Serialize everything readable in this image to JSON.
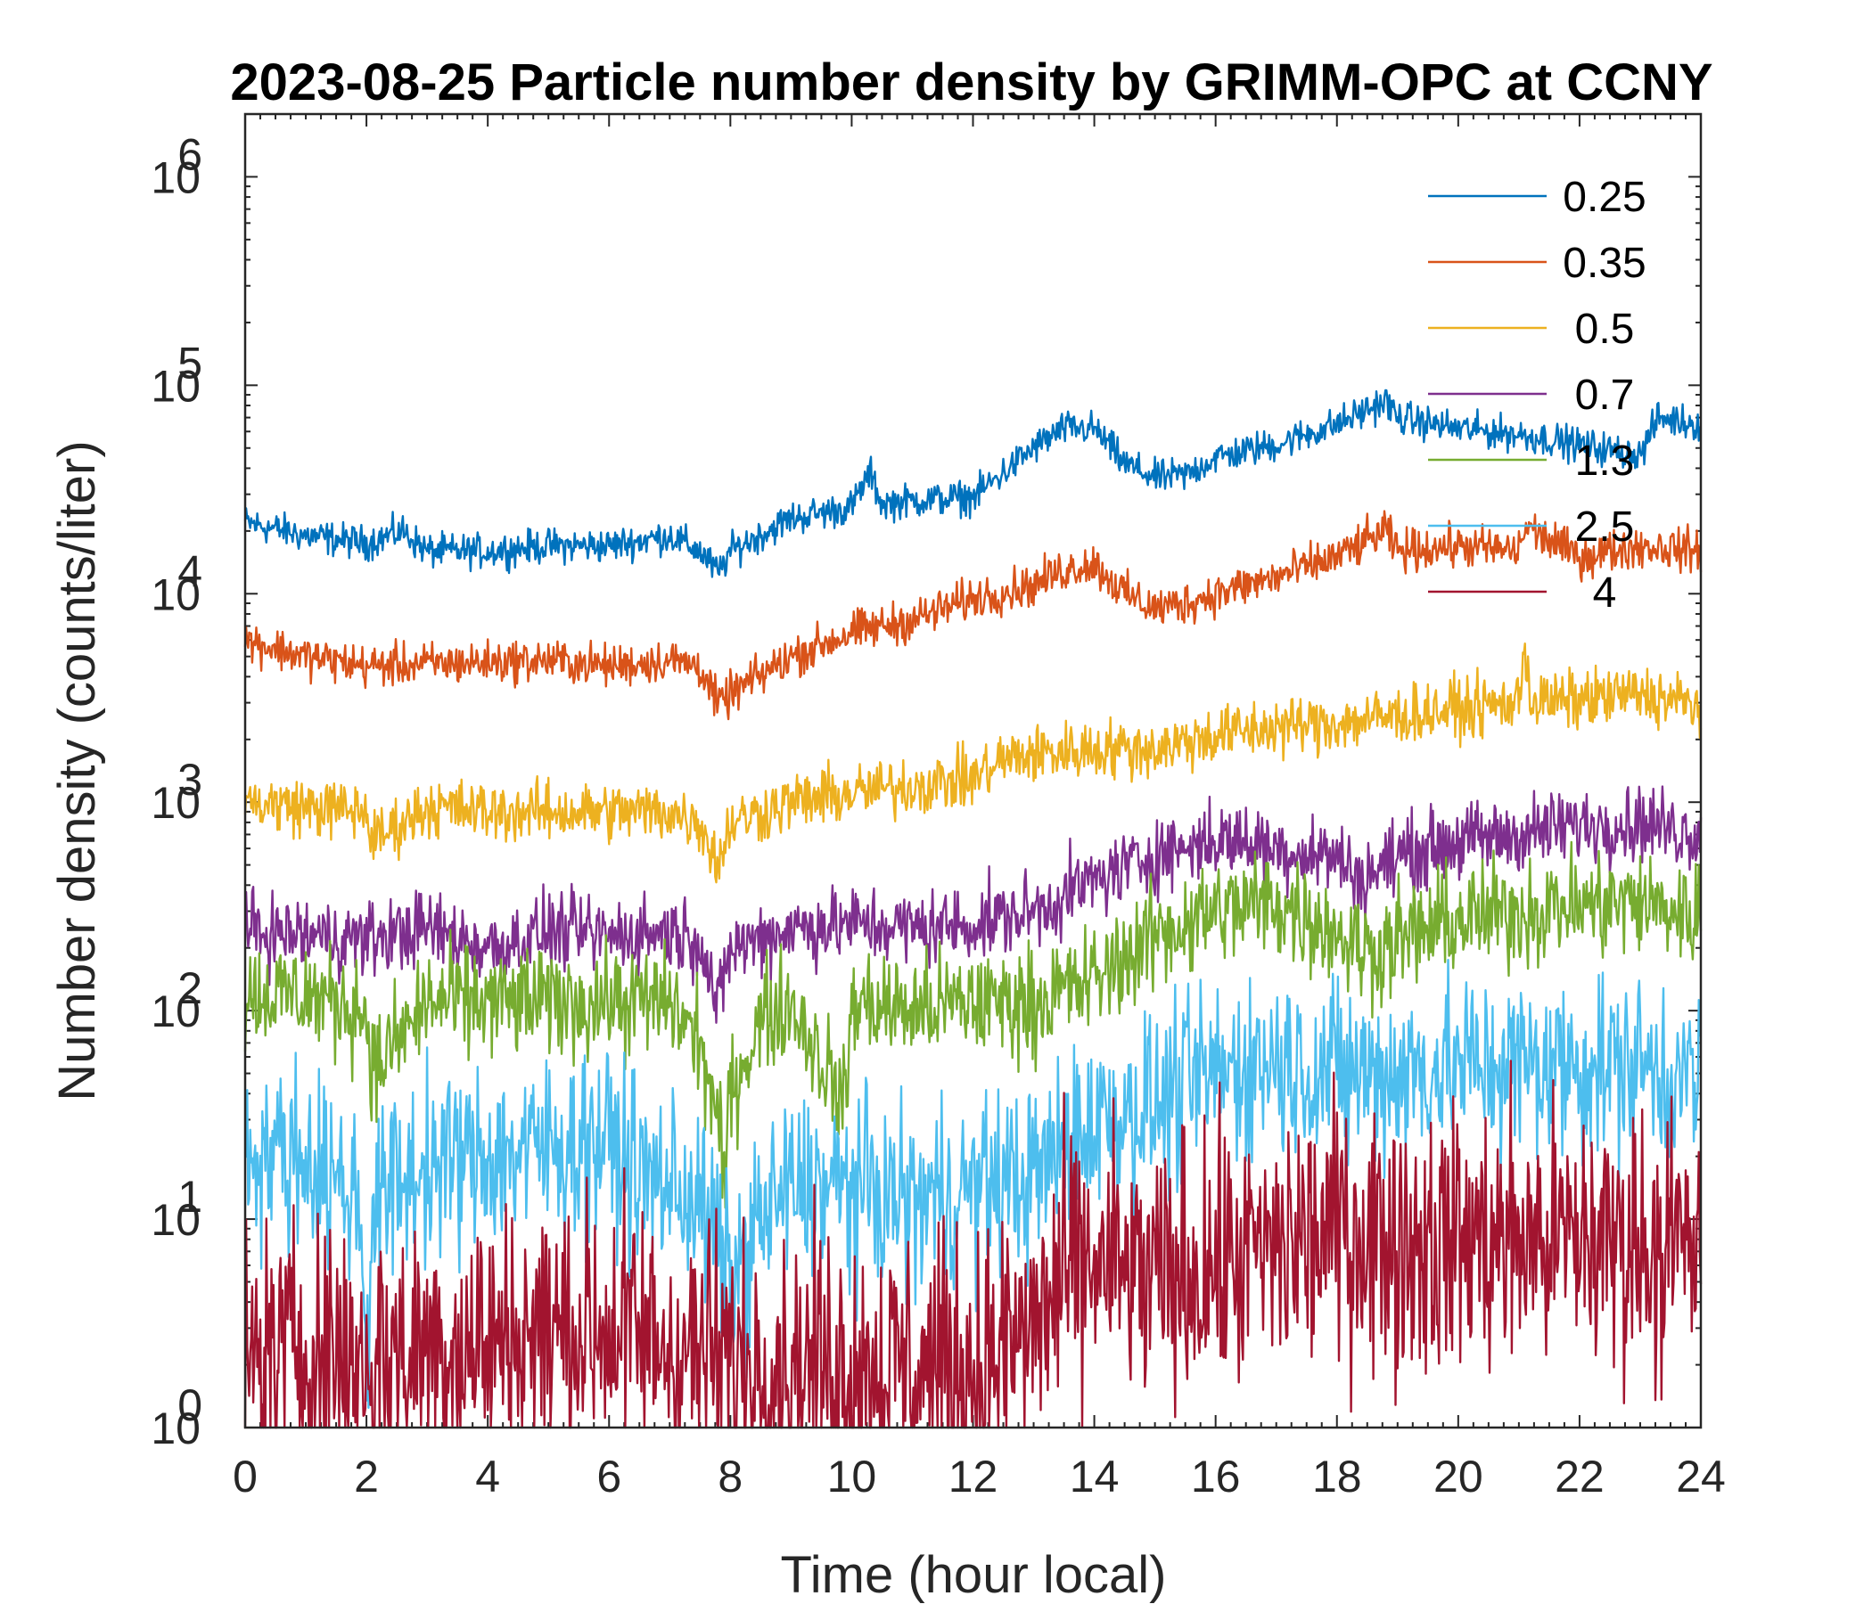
{
  "chart_data": {
    "type": "line",
    "title": "2023-08-25 Particle number density by GRIMM-OPC at CCNY",
    "xlabel": "Time (hour local)",
    "ylabel": "Number density (counts/liter)",
    "xlim": [
      0,
      24
    ],
    "ylim": [
      1,
      2000000
    ],
    "yscale": "log",
    "xticks": [
      0,
      2,
      4,
      6,
      8,
      10,
      12,
      14,
      16,
      18,
      20,
      22,
      24
    ],
    "xtick_labels": [
      "0",
      "2",
      "4",
      "6",
      "8",
      "10",
      "12",
      "14",
      "16",
      "18",
      "20",
      "22",
      "24"
    ],
    "yticks": [
      1,
      10,
      100,
      1000,
      10000,
      100000,
      1000000
    ],
    "ytick_labels": [
      {
        "base": "10",
        "exp": "0"
      },
      {
        "base": "10",
        "exp": "1"
      },
      {
        "base": "10",
        "exp": "2"
      },
      {
        "base": "10",
        "exp": "3"
      },
      {
        "base": "10",
        "exp": "4"
      },
      {
        "base": "10",
        "exp": "5"
      },
      {
        "base": "10",
        "exp": "6"
      }
    ],
    "legend_position": "top-right",
    "series": [
      {
        "name": "0.25",
        "color": "#0072BD",
        "noise": 0.04,
        "x": [
          0,
          1,
          2,
          2.6,
          3,
          4,
          5,
          6,
          7,
          7.5,
          7.8,
          8,
          9,
          10,
          10.3,
          10.5,
          11,
          12,
          12.5,
          13,
          13.5,
          14,
          14.5,
          15,
          15.5,
          16,
          17,
          18,
          18.8,
          19,
          20,
          21,
          22,
          23,
          23.3,
          24
        ],
        "y": [
          22000,
          19000,
          17500,
          20000,
          16000,
          16000,
          17000,
          17000,
          19000,
          16000,
          12500,
          16000,
          23000,
          26000,
          38000,
          27000,
          28000,
          29000,
          38000,
          50000,
          62000,
          62000,
          42000,
          36000,
          37000,
          45000,
          52000,
          65000,
          84000,
          70000,
          62000,
          58000,
          52000,
          46000,
          70000,
          65000
        ]
      },
      {
        "name": "0.35",
        "color": "#D95319",
        "noise": 0.05,
        "x": [
          0,
          1,
          2,
          3,
          4,
          5,
          6,
          7,
          7.5,
          7.8,
          8,
          9,
          10,
          11,
          12,
          13,
          13.5,
          14,
          14.5,
          15,
          15.5,
          16,
          17,
          18,
          18.8,
          19,
          20,
          21,
          21.1,
          22,
          23,
          24
        ],
        "y": [
          6000,
          5000,
          4500,
          4600,
          4700,
          4800,
          4500,
          4800,
          4500,
          2900,
          3300,
          5000,
          6500,
          7500,
          9500,
          11000,
          13000,
          14000,
          10000,
          8500,
          9000,
          10000,
          12000,
          15000,
          20000,
          16000,
          17000,
          16000,
          21000,
          15000,
          17000,
          16000
        ]
      },
      {
        "name": "0.5",
        "color": "#EDB120",
        "noise": 0.07,
        "x": [
          0,
          1,
          2,
          2.1,
          3,
          4,
          5,
          6,
          7,
          7.5,
          7.8,
          8,
          9,
          10,
          11,
          12,
          12.5,
          13,
          14,
          15,
          16,
          17,
          18,
          19,
          20,
          21,
          21.1,
          21.2,
          22,
          23,
          24
        ],
        "y": [
          1000,
          950,
          900,
          650,
          950,
          900,
          900,
          900,
          900,
          800,
          500,
          800,
          1000,
          1100,
          1200,
          1300,
          1600,
          1700,
          1800,
          1800,
          2100,
          2300,
          2400,
          2600,
          2800,
          3000,
          6000,
          3000,
          3100,
          3300,
          2900
        ]
      },
      {
        "name": "0.7",
        "color": "#7E2F8E",
        "noise": 0.09,
        "x": [
          0,
          1,
          2,
          3,
          4,
          5,
          6,
          7,
          7.5,
          7.8,
          8,
          9,
          10,
          11,
          12,
          13,
          14,
          15,
          16,
          16.5,
          17,
          18,
          18.4,
          19,
          20,
          21,
          22,
          23,
          24
        ],
        "y": [
          240,
          230,
          220,
          250,
          200,
          240,
          230,
          240,
          220,
          100,
          200,
          250,
          260,
          250,
          260,
          300,
          420,
          560,
          660,
          650,
          600,
          550,
          420,
          560,
          650,
          700,
          780,
          800,
          700
        ]
      },
      {
        "name": "1.3",
        "color": "#77AC30",
        "noise": 0.13,
        "x": [
          0,
          1,
          2,
          2.1,
          3,
          4,
          5,
          6,
          7,
          7.5,
          7.8,
          7.9,
          8,
          8.5,
          9,
          9.9,
          10,
          11,
          12,
          13,
          14,
          15,
          16,
          17,
          18,
          18.5,
          19,
          20,
          21,
          22,
          23,
          24
        ],
        "y": [
          120,
          120,
          100,
          50,
          110,
          110,
          110,
          110,
          110,
          70,
          28,
          15,
          40,
          90,
          110,
          35,
          110,
          100,
          110,
          110,
          140,
          230,
          300,
          330,
          240,
          190,
          220,
          270,
          300,
          320,
          330,
          280
        ]
      },
      {
        "name": "2.5",
        "color": "#4DBEEE",
        "noise": 0.22,
        "x": [
          0,
          1,
          1.9,
          2,
          2.1,
          3,
          4,
          5,
          6,
          6.5,
          7,
          7.5,
          8,
          8.5,
          9,
          10,
          11,
          12,
          13,
          14,
          15,
          16,
          17,
          18,
          19,
          20,
          21,
          22,
          23,
          24
        ],
        "y": [
          22,
          20,
          12,
          2,
          12,
          18,
          20,
          22,
          24,
          16,
          15,
          12,
          5,
          10,
          14,
          14,
          12,
          14,
          16,
          30,
          35,
          50,
          58,
          50,
          50,
          55,
          55,
          55,
          55,
          45
        ]
      },
      {
        "name": "4",
        "color": "#A2142F",
        "noise": 0.32,
        "x": [
          0,
          1,
          2,
          3,
          4,
          5,
          6,
          7,
          8,
          9,
          10,
          11,
          12,
          13,
          13.5,
          14,
          15,
          16,
          17,
          18,
          19,
          20,
          21,
          22,
          23,
          24
        ],
        "y": [
          2,
          2.5,
          2,
          2.5,
          2.5,
          3,
          3,
          2.5,
          2,
          2,
          2,
          2,
          1.8,
          3,
          5,
          6,
          5,
          6,
          7,
          9,
          8,
          8,
          8,
          8,
          8,
          7
        ]
      }
    ]
  }
}
